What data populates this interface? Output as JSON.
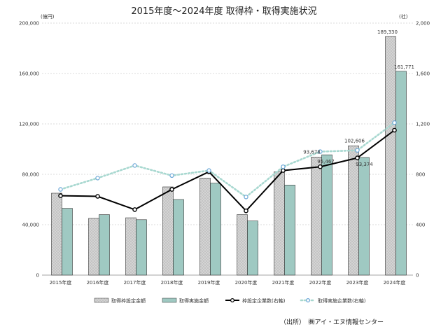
{
  "chart_data": {
    "type": "bar",
    "title": "2015年度～2024年度 取得枠・取得実施状況",
    "left_unit": "(億円)",
    "right_unit": "(社)",
    "categories": [
      "2015年度",
      "2016年度",
      "2017年度",
      "2018年度",
      "2019年度",
      "2020年度",
      "2021年度",
      "2022年度",
      "2023年度",
      "2024年度"
    ],
    "left_ticks": [
      "0",
      "40,000",
      "80,000",
      "120,000",
      "160,000",
      "200,000"
    ],
    "right_ticks": [
      "0",
      "400",
      "800",
      "1,200",
      "1,600",
      "2,000"
    ],
    "ylim_left": [
      0,
      200000
    ],
    "ylim_right": [
      0,
      2000
    ],
    "grid": true,
    "legend_position": "bottom",
    "series": [
      {
        "name": "取得枠設定金額",
        "kind": "bar",
        "axis": "left",
        "color": "#c4c4c4",
        "values": [
          65000,
          45000,
          45500,
          70000,
          77000,
          48000,
          82000,
          93678,
          102606,
          189330
        ]
      },
      {
        "name": "取得実施金額",
        "kind": "bar",
        "axis": "left",
        "color": "#9fc9c2",
        "values": [
          53000,
          48000,
          44000,
          60000,
          73000,
          43000,
          71500,
          95467,
          93374,
          161771
        ]
      },
      {
        "name": "枠設定企業数(右軸)",
        "kind": "line",
        "axis": "right",
        "color": "#000000",
        "values": [
          630,
          625,
          520,
          680,
          820,
          510,
          830,
          860,
          930,
          1150
        ]
      },
      {
        "name": "取得実施企業数(右軸)",
        "kind": "line",
        "axis": "right",
        "color": "#a8d8d0",
        "values": [
          680,
          770,
          870,
          790,
          830,
          620,
          860,
          980,
          990,
          1210
        ]
      }
    ],
    "annotations": [
      {
        "text": "93,678",
        "category": "2022年度",
        "series": 0
      },
      {
        "text": "95,467",
        "category": "2022年度",
        "series": 1
      },
      {
        "text": "102,606",
        "category": "2023年度",
        "series": 0
      },
      {
        "text": "93,374",
        "category": "2023年度",
        "series": 1
      },
      {
        "text": "189,330",
        "category": "2024年度",
        "series": 0
      },
      {
        "text": "161,771",
        "category": "2024年度",
        "series": 1
      }
    ]
  },
  "source": "（出所）　㈱アイ・エヌ情報センター"
}
